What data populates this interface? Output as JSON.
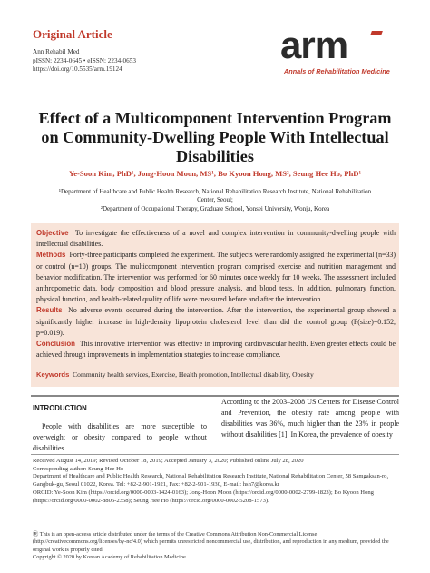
{
  "header": {
    "label": "Original Article",
    "journal": "Ann Rehabil Med",
    "issn": "pISSN: 2234-0645 • eISSN: 2234-0653",
    "doi": "https://doi.org/10.5535/arm.19124"
  },
  "logo": {
    "text": "arm",
    "subtitle": "Annals of Rehabilitation Medicine"
  },
  "article": {
    "title": "Effect of a Multicomponent Intervention Program on Community-Dwelling People With Intellectual Disabilities",
    "authors": "Ye-Soon Kim, PhD¹, Jong-Hoon Moon, MS¹, Bo Kyoon Hong, MS², Seung Hee Ho, PhD¹",
    "affiliation1": "¹Department of Healthcare and Public Health Research, National Rehabilitation Research Institute, National Rehabilitation Center, Seoul;",
    "affiliation2": "²Department of Occupational Therapy, Graduate School, Yonsei University, Wonju, Korea"
  },
  "abstract": {
    "objective_label": "Objective",
    "objective": "To investigate the effectiveness of a novel and complex intervention in community-dwelling people with intellectual disabilities.",
    "methods_label": "Methods",
    "methods": "Forty-three participants completed the experiment. The subjects were randomly assigned the experimental (n=33) or control (n=10) groups. The multicomponent intervention program comprised exercise and nutrition management and behavior modification. The intervention was performed for 60 minutes once weekly for 10 weeks. The assessment included anthropometric data, body composition and blood pressure analysis, and blood tests. In addition, pulmonary function, physical function, and health-related quality of life were measured before and after the intervention.",
    "results_label": "Results",
    "results": "No adverse events occurred during the intervention. After the intervention, the experimental group showed a significantly higher increase in high-density lipoprotein cholesterol level than did the control group (F(size)=0.152, p=0.019).",
    "conclusion_label": "Conclusion",
    "conclusion": "This innovative intervention was effective in improving cardiovascular health. Even greater effects could be achieved through improvements in implementation strategies to increase compliance.",
    "keywords_label": "Keywords",
    "keywords": "Community health services, Exercise, Health promotion, Intellectual disability, Obesity"
  },
  "body": {
    "intro_heading": "INTRODUCTION",
    "left_para": "People with disabilities are more susceptible to overweight or obesity compared to people without disabilities.",
    "right_para": "According to the 2003–2008 US Centers for Disease Control and Prevention, the obesity rate among people with disabilities was 36%, much higher than the 23% in people without disabilities [1]. In Korea, the prevalence of obesity"
  },
  "footer": {
    "received": "Received August 14, 2019; Revised October 18, 2019; Accepted January 3, 2020; Published online July 28, 2020",
    "corresponding": "Corresponding author: Seung-Hee Ho",
    "address": "Department of Healthcare and Public Health Research, National Rehabilitation Research Institute, National Rehabilitation Center, 58 Samgaksan-ro, Gangbuk-gu, Seoul 01022, Korea. Tel: +82-2-901-1921, Fax: +82-2-901-1930, E-mail: hsh7@korea.kr",
    "orcid1": "ORCID: Ye-Soon Kim (https://orcid.org/0000-0003-1424-0163); Jong-Hoon Moon (https://orcid.org/0000-0002-2799-1823); Bo Kyoon Hong (https://orcid.org/0000-0002-8806-2358); Seung Hee Ho (https://orcid.org/0000-0002-5208-1573).",
    "license": "This is an open-access article distributed under the terms of the Creative Commons Attribution Non-Commercial License (http://creativecommons.org/licenses/by-nc/4.0) which permits unrestricted noncommercial use, distribution, and reproduction in any medium, provided the original work is properly cited.",
    "copyright": "Copyright © 2020 by Korean Academy of Rehabilitation Medicine"
  }
}
